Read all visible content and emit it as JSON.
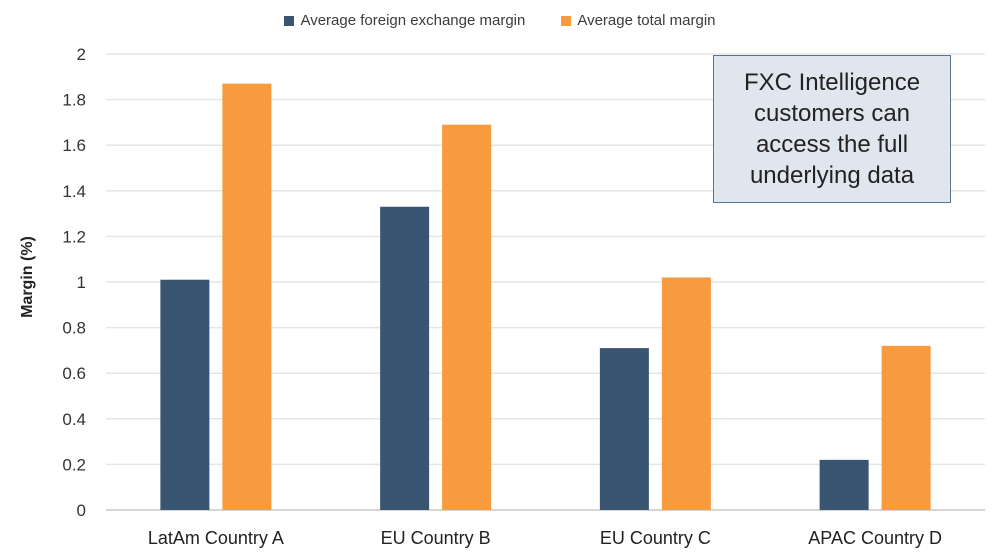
{
  "chart_data": {
    "type": "bar",
    "title": "",
    "xlabel": "",
    "ylabel": "Margin (%)",
    "ylim": [
      0,
      2
    ],
    "yticks": [
      "0",
      "0.2",
      "0.4",
      "0.6",
      "0.8",
      "1",
      "1.2",
      "1.4",
      "1.6",
      "1.8",
      "2"
    ],
    "grid": true,
    "legend_position": "top-center",
    "categories": [
      "LatAm Country A",
      "EU Country B",
      "EU Country C",
      "APAC Country D"
    ],
    "series": [
      {
        "name": "Average foreign exchange margin",
        "color": "#3a5572",
        "values": [
          1.01,
          1.33,
          0.71,
          0.22
        ]
      },
      {
        "name": "Average total margin",
        "color": "#f89a3e",
        "values": [
          1.87,
          1.69,
          1.02,
          0.72
        ]
      }
    ],
    "annotation": "FXC Intelligence customers can access the full underlying data"
  }
}
